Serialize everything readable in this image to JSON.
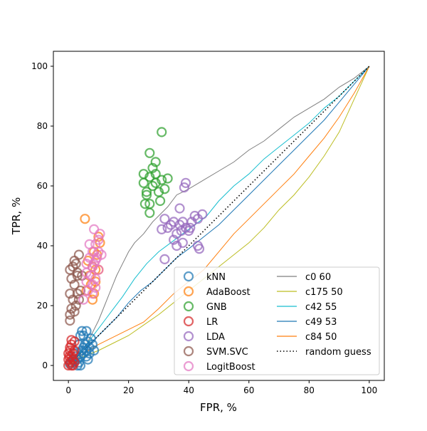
{
  "chart_data": {
    "type": "scatter",
    "title": "",
    "xlabel": "FPR, %",
    "ylabel": "TPR, %",
    "xlim": [
      -5,
      105
    ],
    "ylim": [
      -5,
      105
    ],
    "xticks": [
      0,
      20,
      40,
      60,
      80,
      100
    ],
    "yticks": [
      0,
      20,
      40,
      60,
      80,
      100
    ],
    "grid": false,
    "legend_position": "lower-right",
    "scatter_series": [
      {
        "name": "kNN",
        "color": "#1f77b4",
        "points": [
          [
            0.5,
            0.5
          ],
          [
            1,
            1
          ],
          [
            1.5,
            2
          ],
          [
            2,
            1.5
          ],
          [
            2.5,
            3
          ],
          [
            3,
            0
          ],
          [
            3.5,
            1
          ],
          [
            4,
            0
          ],
          [
            4,
            3
          ],
          [
            4.5,
            5
          ],
          [
            5,
            6
          ],
          [
            5,
            10
          ],
          [
            5.5,
            7
          ],
          [
            6,
            3
          ],
          [
            6,
            5
          ],
          [
            6.5,
            8
          ],
          [
            7,
            4
          ],
          [
            7,
            6
          ],
          [
            7.5,
            9
          ],
          [
            8,
            7
          ],
          [
            8.5,
            5
          ],
          [
            4.5,
            11.5
          ],
          [
            6,
            11.5
          ],
          [
            3,
            2
          ],
          [
            5,
            4
          ],
          [
            6.5,
            2
          ],
          [
            2,
            4
          ],
          [
            3.5,
            7
          ],
          [
            4,
            10
          ]
        ]
      },
      {
        "name": "AdaBoost",
        "color": "#ff7f0e",
        "points": [
          [
            5.5,
            49
          ],
          [
            6.5,
            35
          ],
          [
            7.5,
            27
          ],
          [
            8,
            22
          ],
          [
            8.5,
            24
          ],
          [
            9,
            28
          ],
          [
            10,
            43
          ],
          [
            10.5,
            41
          ],
          [
            9.5,
            37
          ],
          [
            7,
            30
          ],
          [
            6,
            25
          ],
          [
            8,
            33
          ],
          [
            9,
            32
          ],
          [
            10,
            32
          ],
          [
            8.5,
            38
          ]
        ]
      },
      {
        "name": "GNB",
        "color": "#2ca02c",
        "points": [
          [
            31,
            78
          ],
          [
            27,
            71
          ],
          [
            29,
            68
          ],
          [
            25,
            64
          ],
          [
            27,
            63
          ],
          [
            29,
            64
          ],
          [
            31,
            62
          ],
          [
            33,
            62.5
          ],
          [
            25,
            61
          ],
          [
            26,
            58
          ],
          [
            28,
            60
          ],
          [
            30,
            58
          ],
          [
            32,
            59
          ],
          [
            25.5,
            54
          ],
          [
            27,
            54
          ],
          [
            27,
            51
          ],
          [
            29,
            61
          ],
          [
            30.5,
            55
          ],
          [
            26,
            57
          ],
          [
            28,
            66
          ]
        ]
      },
      {
        "name": "LR",
        "color": "#d62728",
        "points": [
          [
            0,
            0
          ],
          [
            0.5,
            1
          ],
          [
            0.3,
            3
          ],
          [
            0.5,
            5
          ],
          [
            1,
            7
          ],
          [
            1,
            0
          ],
          [
            1.5,
            2
          ],
          [
            1.5,
            4
          ],
          [
            0,
            2
          ],
          [
            0.5,
            6
          ],
          [
            1,
            8.5
          ],
          [
            2,
            8
          ],
          [
            1.5,
            0
          ],
          [
            2,
            1
          ],
          [
            0,
            4
          ],
          [
            1,
            3
          ],
          [
            2,
            5
          ]
        ]
      },
      {
        "name": "LDA",
        "color": "#9467bd",
        "points": [
          [
            39,
            61
          ],
          [
            38.5,
            59.5
          ],
          [
            37,
            52.5
          ],
          [
            42,
            50
          ],
          [
            44.5,
            50.5
          ],
          [
            43,
            49
          ],
          [
            35,
            48
          ],
          [
            37,
            47
          ],
          [
            39,
            46
          ],
          [
            40.5,
            46
          ],
          [
            41,
            48
          ],
          [
            32,
            49
          ],
          [
            33,
            46
          ],
          [
            31,
            45.5
          ],
          [
            37.5,
            45
          ],
          [
            35,
            42
          ],
          [
            36,
            44
          ],
          [
            38,
            41
          ],
          [
            43,
            40
          ],
          [
            43.5,
            39
          ],
          [
            36,
            40
          ],
          [
            32,
            35.5
          ],
          [
            38,
            48
          ],
          [
            40,
            45
          ],
          [
            34,
            47
          ]
        ]
      },
      {
        "name": "SVM.SVC",
        "color": "#8c564b",
        "points": [
          [
            0.5,
            32
          ],
          [
            1.5,
            33
          ],
          [
            2.5,
            34
          ],
          [
            3,
            30
          ],
          [
            1,
            29
          ],
          [
            3.5,
            37
          ],
          [
            2,
            27
          ],
          [
            3,
            24
          ],
          [
            0.5,
            24
          ],
          [
            1.5,
            22
          ],
          [
            2.5,
            20
          ],
          [
            3.5,
            22
          ],
          [
            1,
            19
          ],
          [
            0.5,
            17
          ],
          [
            0.5,
            15
          ],
          [
            2,
            18
          ],
          [
            4,
            25
          ],
          [
            3,
            31
          ],
          [
            2,
            35
          ],
          [
            4.5,
            30
          ]
        ]
      },
      {
        "name": "LogitBoost",
        "color": "#e377c2",
        "points": [
          [
            8.5,
            45.5
          ],
          [
            10.5,
            44
          ],
          [
            10,
            42
          ],
          [
            7,
            40.5
          ],
          [
            9,
            40.5
          ],
          [
            8,
            38
          ],
          [
            10,
            38
          ],
          [
            11,
            37
          ],
          [
            7,
            36
          ],
          [
            9,
            35
          ],
          [
            6,
            34
          ],
          [
            8,
            33
          ],
          [
            10,
            32
          ],
          [
            6,
            31
          ],
          [
            7.5,
            30
          ],
          [
            9,
            29
          ],
          [
            6,
            28
          ],
          [
            8,
            27
          ],
          [
            9,
            26
          ],
          [
            6.5,
            25
          ],
          [
            8,
            24
          ],
          [
            5,
            22
          ],
          [
            8.5,
            34
          ],
          [
            9.5,
            36
          ]
        ]
      }
    ],
    "line_series": [
      {
        "name": "c0 60",
        "color": "#7f7f7f",
        "points": [
          [
            0,
            0
          ],
          [
            2,
            2
          ],
          [
            4,
            4.5
          ],
          [
            6,
            7
          ],
          [
            8,
            11
          ],
          [
            10,
            15
          ],
          [
            12,
            20
          ],
          [
            14,
            25
          ],
          [
            16,
            30
          ],
          [
            18,
            34
          ],
          [
            20,
            38
          ],
          [
            22,
            41
          ],
          [
            25,
            44
          ],
          [
            28,
            48
          ],
          [
            30,
            50
          ],
          [
            33,
            53
          ],
          [
            36,
            57
          ],
          [
            40,
            59
          ],
          [
            45,
            62
          ],
          [
            50,
            65
          ],
          [
            55,
            68
          ],
          [
            60,
            72
          ],
          [
            65,
            75
          ],
          [
            70,
            79
          ],
          [
            75,
            83
          ],
          [
            80,
            86
          ],
          [
            85,
            89
          ],
          [
            90,
            93
          ],
          [
            95,
            96
          ],
          [
            100,
            100
          ]
        ]
      },
      {
        "name": "c175 50",
        "color": "#bcbd22",
        "points": [
          [
            0,
            0
          ],
          [
            5,
            3
          ],
          [
            10,
            5
          ],
          [
            15,
            7.5
          ],
          [
            20,
            10
          ],
          [
            25,
            13.5
          ],
          [
            30,
            17
          ],
          [
            35,
            21
          ],
          [
            40,
            25
          ],
          [
            45,
            29
          ],
          [
            50,
            33
          ],
          [
            55,
            37
          ],
          [
            60,
            41
          ],
          [
            65,
            46
          ],
          [
            70,
            52
          ],
          [
            75,
            57
          ],
          [
            80,
            63
          ],
          [
            85,
            70
          ],
          [
            90,
            78
          ],
          [
            95,
            89
          ],
          [
            100,
            100
          ]
        ]
      },
      {
        "name": "c42 55",
        "color": "#17becf",
        "points": [
          [
            0,
            0
          ],
          [
            3,
            3
          ],
          [
            6,
            7
          ],
          [
            9,
            11
          ],
          [
            12,
            15
          ],
          [
            15,
            19
          ],
          [
            18,
            23
          ],
          [
            22,
            29
          ],
          [
            26,
            34
          ],
          [
            30,
            38
          ],
          [
            34,
            41
          ],
          [
            38,
            44
          ],
          [
            42,
            47
          ],
          [
            46,
            50
          ],
          [
            50,
            55
          ],
          [
            55,
            60
          ],
          [
            60,
            64
          ],
          [
            65,
            69
          ],
          [
            70,
            73
          ],
          [
            75,
            77
          ],
          [
            80,
            81
          ],
          [
            85,
            86
          ],
          [
            90,
            90
          ],
          [
            95,
            95
          ],
          [
            100,
            100
          ]
        ]
      },
      {
        "name": "c49 53",
        "color": "#1f77b4",
        "points": [
          [
            0,
            0
          ],
          [
            4,
            4
          ],
          [
            8,
            8
          ],
          [
            12,
            12
          ],
          [
            16,
            16
          ],
          [
            20,
            21
          ],
          [
            24,
            25
          ],
          [
            28,
            28
          ],
          [
            32,
            32
          ],
          [
            36,
            36
          ],
          [
            40,
            39
          ],
          [
            45,
            43
          ],
          [
            50,
            47
          ],
          [
            55,
            52
          ],
          [
            60,
            57
          ],
          [
            65,
            62
          ],
          [
            70,
            67
          ],
          [
            75,
            72
          ],
          [
            80,
            77
          ],
          [
            85,
            82
          ],
          [
            90,
            88
          ],
          [
            95,
            94
          ],
          [
            100,
            100
          ]
        ]
      },
      {
        "name": "c84 50",
        "color": "#ff7f0e",
        "points": [
          [
            0,
            0
          ],
          [
            5,
            4
          ],
          [
            10,
            7
          ],
          [
            15,
            9.5
          ],
          [
            20,
            12
          ],
          [
            25,
            14.5
          ],
          [
            30,
            19
          ],
          [
            35,
            24
          ],
          [
            40,
            28
          ],
          [
            45,
            32
          ],
          [
            50,
            38
          ],
          [
            55,
            44
          ],
          [
            60,
            49
          ],
          [
            65,
            54
          ],
          [
            70,
            59
          ],
          [
            75,
            64
          ],
          [
            80,
            70
          ],
          [
            85,
            76
          ],
          [
            90,
            83
          ],
          [
            95,
            91
          ],
          [
            100,
            100
          ]
        ]
      },
      {
        "name": "random guess",
        "color": "#000000",
        "dotted": true,
        "points": [
          [
            0,
            0
          ],
          [
            100,
            100
          ]
        ]
      }
    ]
  }
}
